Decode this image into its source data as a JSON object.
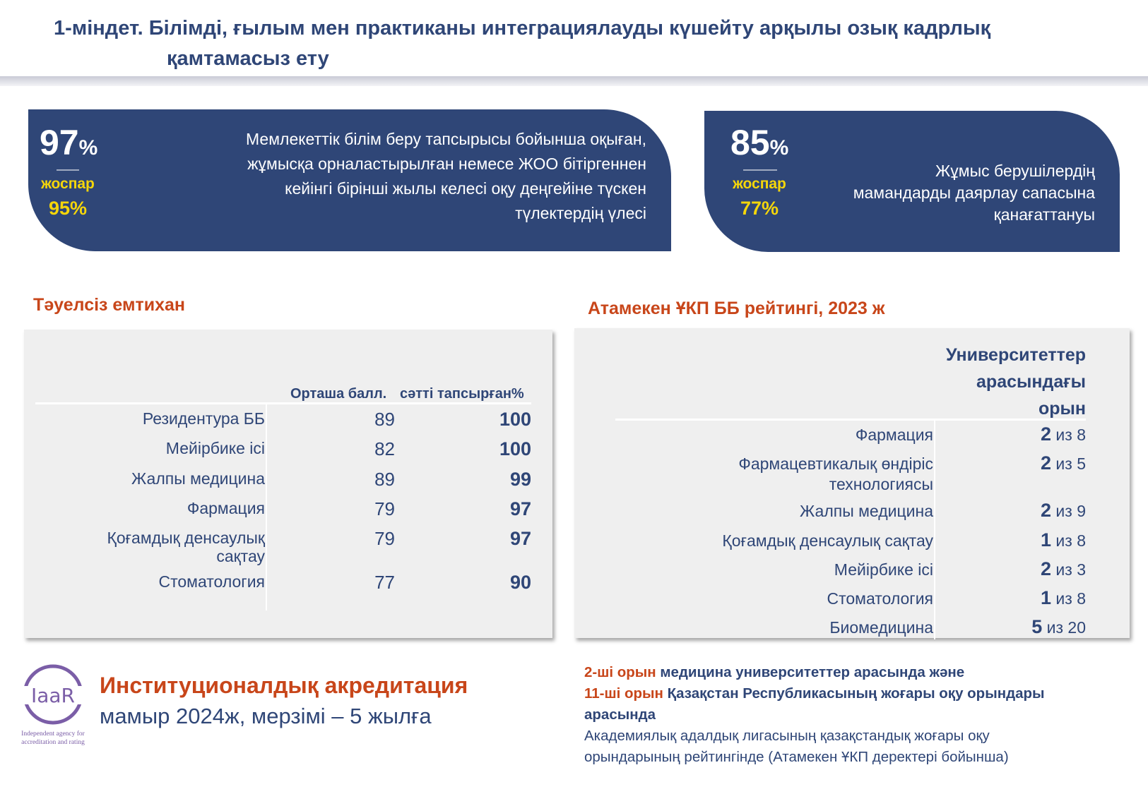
{
  "header": {
    "title_line1": "1-міндет. Білімді, ғылым мен практиканы интеграциялауды күшейту арқылы озық кадрлық",
    "title_line2": "қамтамасыз ету"
  },
  "kpi": [
    {
      "value": "97",
      "unit": "%",
      "dash": "——",
      "plan_label": "жоспар",
      "plan_value": "95%",
      "description": [
        "Мемлекеттік білім беру тапсырысы бойынша оқыған,",
        "жұмысқа орналастырылған немесе ЖОО бітіргеннен",
        "кейінгі бірінші жылы келесі оқу деңгейіне түскен",
        "түлектердің үлесі"
      ]
    },
    {
      "value": "85",
      "unit": "%",
      "dash": "———",
      "plan_label": "жоспар",
      "plan_value": "77%",
      "description": [
        "Жұмыс берушілердің",
        "мамандарды даярлау сапасына",
        "қанағаттануы"
      ]
    }
  ],
  "exam": {
    "heading": "Тәуелсіз емтихан",
    "col_headers": [
      "Орташа балл.",
      "сәтті тапсырған%"
    ],
    "rows": [
      {
        "label": [
          "Резидентура ББ"
        ],
        "avg": "89",
        "pass": "100"
      },
      {
        "label": [
          "Мейірбике ісі"
        ],
        "avg": "82",
        "pass": "100"
      },
      {
        "label": [
          "Жалпы медицина"
        ],
        "avg": "89",
        "pass": "99"
      },
      {
        "label": [
          "Фармация"
        ],
        "avg": "79",
        "pass": "97"
      },
      {
        "label": [
          "Қоғамдық  денсаулық",
          "сақтау"
        ],
        "avg": "79",
        "pass": "97"
      },
      {
        "label": [
          "Стоматология"
        ],
        "avg": "77",
        "pass": "90"
      }
    ]
  },
  "rating": {
    "heading": "Атамекен ҰКП ББ рейтингі, 2023 ж",
    "col_header": [
      "Университеттер",
      "арасындағы",
      "орын"
    ],
    "rows": [
      {
        "label": [
          "Фармация"
        ],
        "place": "2",
        "of": "из 8"
      },
      {
        "label": [
          "Фармацевтикалық өндіріс",
          "технологиясы"
        ],
        "place": "2",
        "of": "из 5"
      },
      {
        "label": [
          "Жалпы медицина"
        ],
        "place": "2",
        "of": "из 9"
      },
      {
        "label": [
          "Қоғамдық денсаулық сақтау"
        ],
        "place": "1",
        "of": "из 8"
      },
      {
        "label": [
          "Мейірбике ісі"
        ],
        "place": "2",
        "of": "из 3"
      },
      {
        "label": [
          "Стоматология"
        ],
        "place": "1",
        "of": "из 8"
      },
      {
        "label": [
          "Биомедицина"
        ],
        "place": "5",
        "of": "из 20"
      }
    ]
  },
  "accreditation": {
    "logo_text": "IaaR",
    "logo_caption": [
      "Independent agency for",
      "accreditation and rating"
    ],
    "title": "Институционалдық акредитация",
    "subtitle": "мамыр 2024ж, мерзімі – 5 жылға"
  },
  "ranking_note": {
    "line1_accent": "2-ші орын",
    "line1_rest": " медицина университеттер арасында және",
    "line2_accent": "11-ші орын",
    "line2_rest": " Қазақстан Республикасының жоғары оқу орындары",
    "line3": "арасында",
    "line4": "Академиялық адалдық лигасының қазақстандық жоғары оқу",
    "line5": "орындарының рейтингінде (Атамекен ҰКП деректері бойынша)"
  },
  "colors": {
    "navy": "#2f4677",
    "accent": "#c8461a",
    "plan": "#f5d60a",
    "logo": "#7b5ea7"
  }
}
